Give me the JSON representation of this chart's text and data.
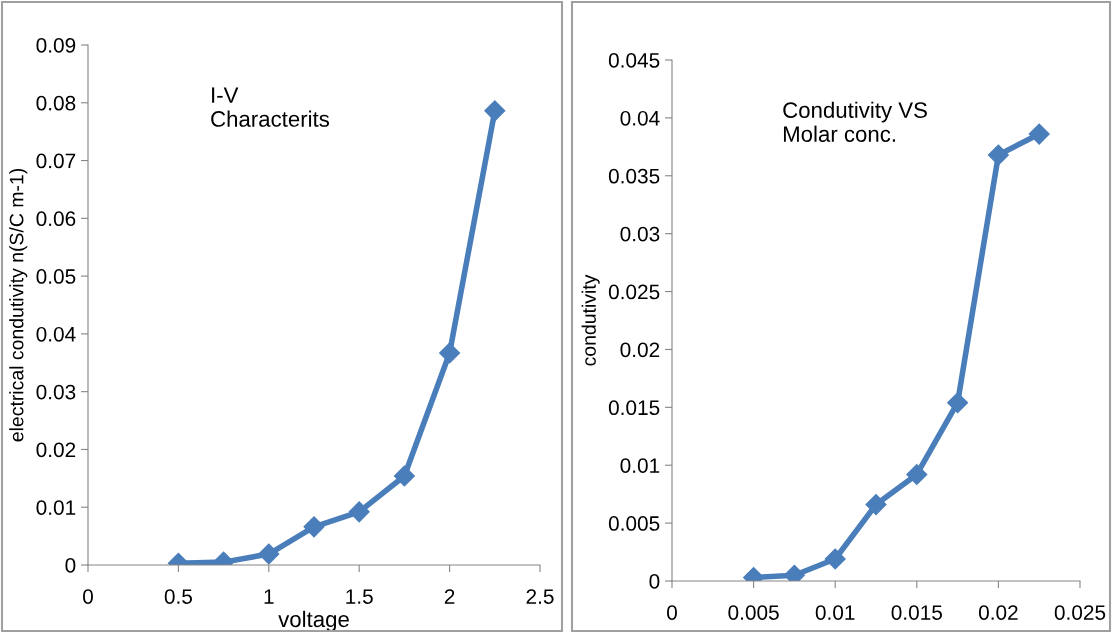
{
  "chart_data": [
    {
      "type": "line",
      "xlabel": "voltage",
      "ylabel": "electrical condutivity n(S/C m-1)",
      "annotations": [
        "I-V\nCharacterits"
      ],
      "x": [
        0.5,
        0.75,
        1.0,
        1.25,
        1.5,
        1.75,
        2.0,
        2.25
      ],
      "series": [
        {
          "color": "#4a7ebb",
          "values": [
            0.0003,
            0.0005,
            0.0019,
            0.0066,
            0.0092,
            0.0154,
            0.0367,
            0.0786
          ]
        }
      ],
      "xlim": [
        0,
        2.5
      ],
      "xticks": [
        0,
        0.5,
        1,
        1.5,
        2,
        2.5
      ],
      "ylim": [
        0,
        0.09
      ],
      "yticks": [
        0,
        0.01,
        0.02,
        0.03,
        0.04,
        0.05,
        0.06,
        0.07,
        0.08,
        0.09
      ],
      "marker": "diamond",
      "line_style": "solid",
      "grid": false
    },
    {
      "type": "line",
      "ylabel": "condutivity",
      "annotations": [
        "Condutivity VS\nMolar conc."
      ],
      "x": [
        0.005,
        0.0075,
        0.01,
        0.0125,
        0.015,
        0.0175,
        0.02,
        0.0225
      ],
      "series": [
        {
          "color": "#4a7ebb",
          "values": [
            0.0003,
            0.0005,
            0.0019,
            0.0066,
            0.0092,
            0.0154,
            0.0368,
            0.0386
          ]
        }
      ],
      "xlim": [
        0,
        0.025
      ],
      "xticks": [
        0,
        0.005,
        0.01,
        0.015,
        0.02,
        0.025
      ],
      "ylim": [
        0,
        0.045
      ],
      "yticks": [
        0,
        0.005,
        0.01,
        0.015,
        0.02,
        0.025,
        0.03,
        0.035,
        0.04,
        0.045
      ],
      "marker": "diamond",
      "line_style": "solid",
      "grid": false
    }
  ]
}
